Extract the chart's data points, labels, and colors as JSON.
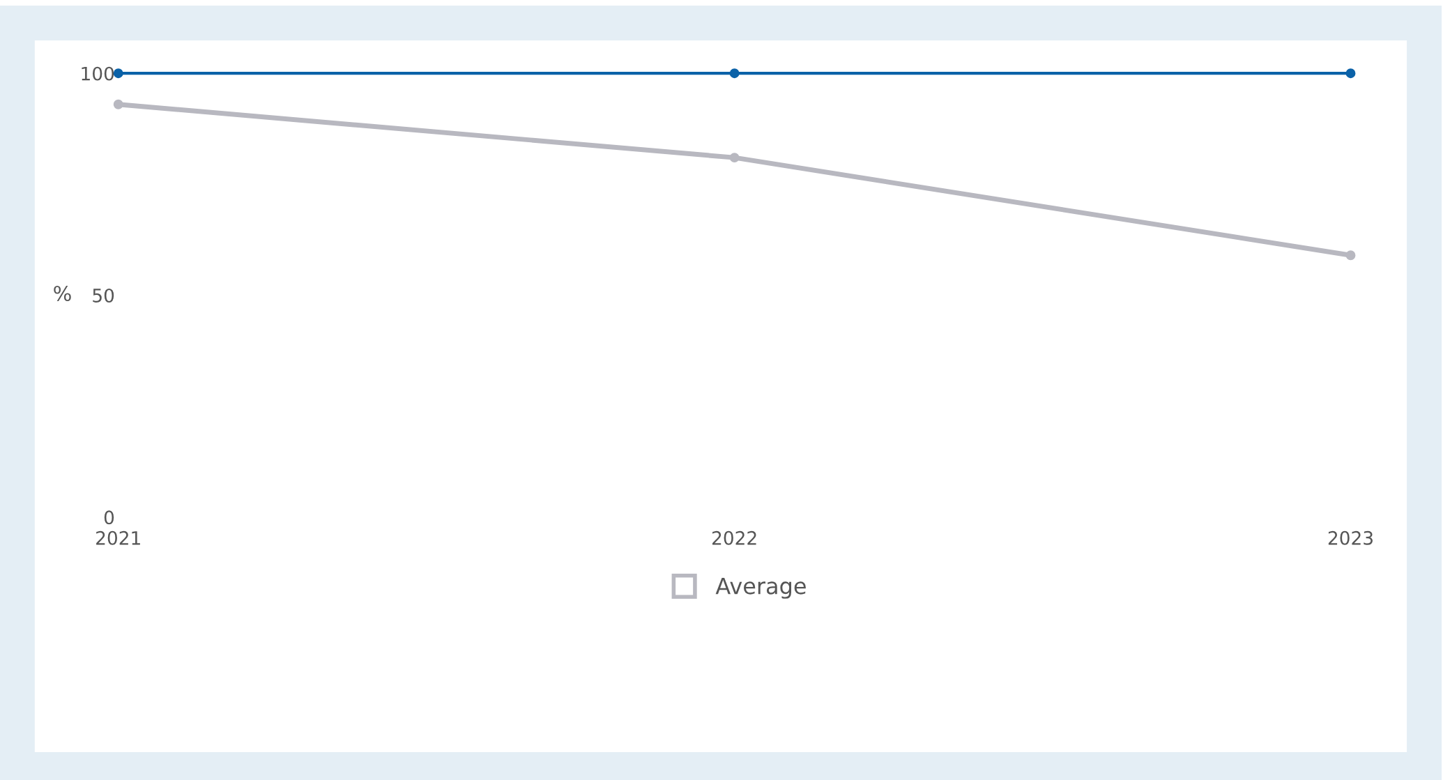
{
  "chart_data": {
    "type": "line",
    "ylabel": "%",
    "categories": [
      "2021",
      "2022",
      "2023"
    ],
    "series": [
      {
        "color": "#0b62a8",
        "values": [
          100,
          100,
          100
        ]
      },
      {
        "name": "Average",
        "color": "#b8b8c0",
        "values": [
          93,
          81,
          59
        ]
      }
    ],
    "ylim": [
      0,
      100
    ],
    "yticks": [
      0,
      50,
      100
    ],
    "grid": false,
    "legend": "bottom",
    "marker": "circle",
    "line_style": "solid"
  }
}
